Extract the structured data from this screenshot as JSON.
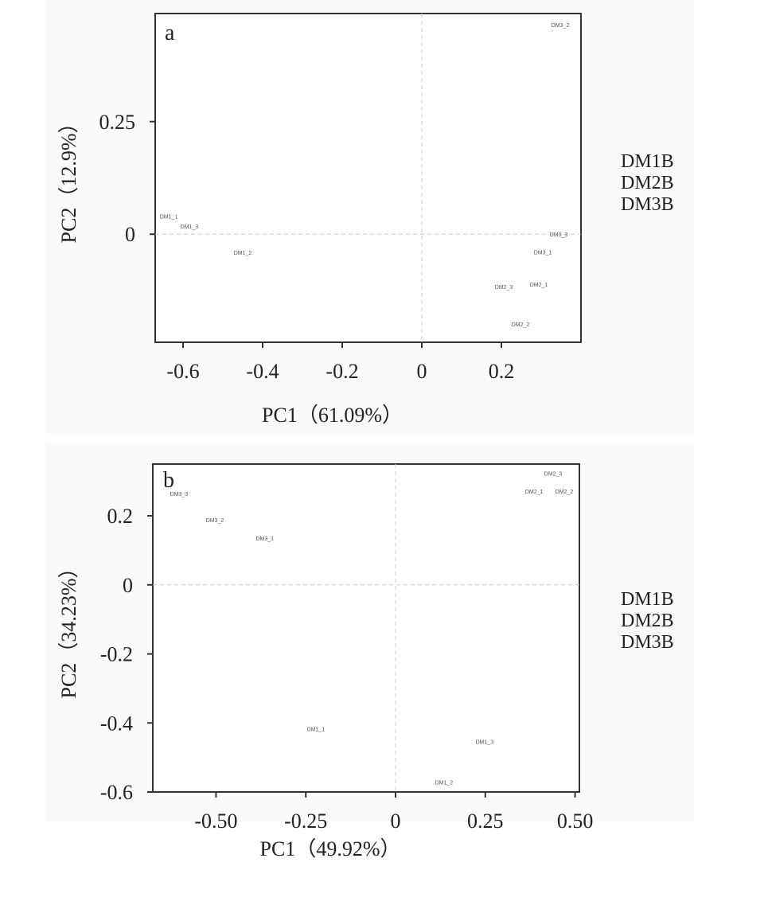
{
  "chart_data": [
    {
      "type": "scatter",
      "panel_label": "a",
      "xlabel": "PC1（61.09%）",
      "ylabel": "PC2（12.9%）",
      "xlim": [
        -0.67,
        0.4
      ],
      "ylim": [
        -0.24,
        0.49
      ],
      "xticks": [
        -0.6,
        -0.4,
        -0.2,
        0,
        0.2
      ],
      "xtick_labels": [
        "-0.6",
        "-0.4",
        "-0.2",
        "0",
        "0.2"
      ],
      "yticks": [
        0,
        0.25
      ],
      "ytick_labels": [
        "0",
        "0.25"
      ],
      "legend": [
        "DM1B",
        "DM2B",
        "DM3B"
      ],
      "legend_position": "right",
      "points": [
        {
          "label": "DM1_1",
          "x": -0.636,
          "y": 0.04
        },
        {
          "label": "DM1_3",
          "x": -0.584,
          "y": 0.018
        },
        {
          "label": "DM1_2",
          "x": -0.45,
          "y": -0.04
        },
        {
          "label": "DM3_2",
          "x": 0.348,
          "y": 0.465
        },
        {
          "label": "DM3_3",
          "x": 0.344,
          "y": 0.0
        },
        {
          "label": "DM3_1",
          "x": 0.304,
          "y": -0.039
        },
        {
          "label": "DM2_1",
          "x": 0.294,
          "y": -0.111
        },
        {
          "label": "DM2_3",
          "x": 0.206,
          "y": -0.116
        },
        {
          "label": "DM2_2",
          "x": 0.248,
          "y": -0.199
        }
      ]
    },
    {
      "type": "scatter",
      "panel_label": "b",
      "xlabel": "PC1（49.92%）",
      "ylabel": "PC2（34.23%）",
      "xlim": [
        -0.676,
        0.512
      ],
      "ylim": [
        -0.6,
        0.35
      ],
      "xticks": [
        -0.5,
        -0.25,
        0,
        0.25,
        0.5
      ],
      "xtick_labels": [
        "-0.50",
        "-0.25",
        "0",
        "0.25",
        "0.50"
      ],
      "yticks": [
        -0.6,
        -0.4,
        -0.2,
        0,
        0.2
      ],
      "ytick_labels": [
        "-0.6",
        "-0.4",
        "-0.2",
        "0",
        "0.2"
      ],
      "legend": [
        "DM1B",
        "DM2B",
        "DM3B"
      ],
      "legend_position": "right",
      "points": [
        {
          "label": "DM3_3",
          "x": -0.603,
          "y": 0.265
        },
        {
          "label": "DM3_2",
          "x": -0.503,
          "y": 0.189
        },
        {
          "label": "DM3_1",
          "x": -0.364,
          "y": 0.136
        },
        {
          "label": "DM2_3",
          "x": 0.439,
          "y": 0.323
        },
        {
          "label": "DM2_1",
          "x": 0.386,
          "y": 0.272
        },
        {
          "label": "DM2_2",
          "x": 0.47,
          "y": 0.272
        },
        {
          "label": "DM1_1",
          "x": -0.222,
          "y": -0.417
        },
        {
          "label": "DM1_3",
          "x": 0.248,
          "y": -0.454
        },
        {
          "label": "DM1_2",
          "x": 0.135,
          "y": -0.571
        }
      ]
    }
  ]
}
